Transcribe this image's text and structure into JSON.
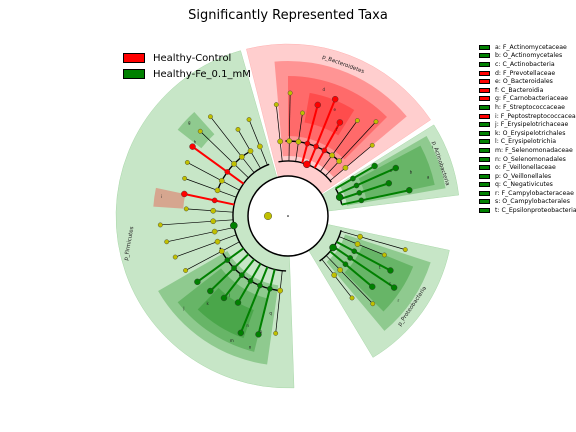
{
  "title": "Significantly Represented Taxa",
  "legend": [
    {
      "label": "Healthy-Control",
      "color": "#ff0000"
    },
    {
      "label": "Healthy-Fe_0.1_mM",
      "color": "#008000"
    }
  ],
  "taxa": [
    {
      "label": "a: F_Actinomycetaceae",
      "group": "Healthy-Fe_0.1_mM"
    },
    {
      "label": "b: O_Actinomycetales",
      "group": "Healthy-Fe_0.1_mM"
    },
    {
      "label": "c: C_Actinobacteria",
      "group": "Healthy-Fe_0.1_mM"
    },
    {
      "label": "d: F_Prevotellaceae",
      "group": "Healthy-Control"
    },
    {
      "label": "e: O_Bacteroidales",
      "group": "Healthy-Control"
    },
    {
      "label": "f: C_Bacteroidia",
      "group": "Healthy-Control"
    },
    {
      "label": "g: F_Carnobacteriaceae",
      "group": "Healthy-Control"
    },
    {
      "label": "h: F_Streptococcaceae",
      "group": "Healthy-Fe_0.1_mM"
    },
    {
      "label": "i: F_Peptostreptococcaceae",
      "group": "Healthy-Control"
    },
    {
      "label": "j: F_Erysipelotrichaceae",
      "group": "Healthy-Fe_0.1_mM"
    },
    {
      "label": "k: O_Erysipelotrichales",
      "group": "Healthy-Fe_0.1_mM"
    },
    {
      "label": "l: C_Erysipelotrichia",
      "group": "Healthy-Fe_0.1_mM"
    },
    {
      "label": "m: F_Selenomonadaceae",
      "group": "Healthy-Fe_0.1_mM"
    },
    {
      "label": "n: O_Selenomonadales",
      "group": "Healthy-Fe_0.1_mM"
    },
    {
      "label": "o: F_Veillonellaceae",
      "group": "Healthy-Fe_0.1_mM"
    },
    {
      "label": "p: O_Veillonellales",
      "group": "Healthy-Fe_0.1_mM"
    },
    {
      "label": "q: C_Negativicutes",
      "group": "Healthy-Fe_0.1_mM"
    },
    {
      "label": "r: F_Campylobacteraceae",
      "group": "Healthy-Fe_0.1_mM"
    },
    {
      "label": "s: O_Campylobacterales",
      "group": "Healthy-Fe_0.1_mM"
    },
    {
      "label": "t: C_Epsilonproteobacteria",
      "group": "Healthy-Fe_0.1_mM"
    }
  ],
  "phyla": [
    {
      "label": "p_Bacteroidetes",
      "group": "Healthy-Control"
    },
    {
      "label": "p_Actinobacteria",
      "group": "Healthy-Fe_0.1_mM"
    },
    {
      "label": "p_Proteobacteria",
      "group": "Healthy-Fe_0.1_mM"
    },
    {
      "label": "p_Firmicutes",
      "group": "Healthy-Fe_0.1_mM"
    }
  ],
  "node_letters": [
    "a",
    "b",
    "c",
    "d",
    "e",
    "f",
    "g",
    "h",
    "i",
    "j",
    "k",
    "l",
    "m",
    "n",
    "o",
    "p",
    "q",
    "r",
    "s",
    "t"
  ],
  "colors": {
    "control": "#ff0000",
    "fe": "#008000",
    "neutral_node": "#c0c000",
    "control_shade": "#ffb3b3",
    "fe_shade": "#a9d8a9"
  }
}
